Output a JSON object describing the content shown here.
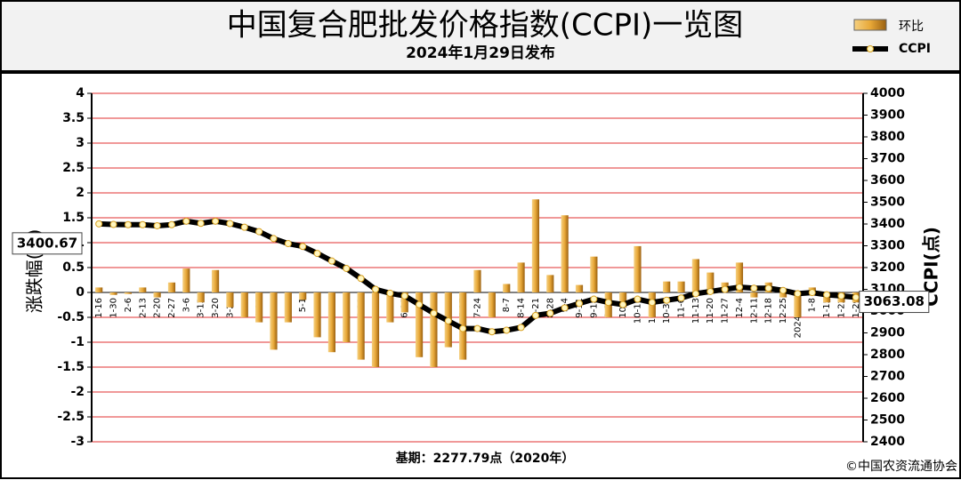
{
  "chart_data": {
    "type": "bar-line",
    "title": "中国复合肥批发价格指数(CCPI)一览图",
    "subtitle": "2024年1月29日发布",
    "categories": [
      "1-16",
      "1-30",
      "2-6",
      "2-13",
      "2-20",
      "2-27",
      "3-6",
      "3-13",
      "3-20",
      "3-27",
      "4-3",
      "4-10",
      "4-17",
      "4-24",
      "5-1",
      "5-8",
      "5-16",
      "5-22",
      "5-29",
      "6-5",
      "6-12",
      "6-19",
      "6-26",
      "7-3",
      "7-10",
      "7-17",
      "7-24",
      "7-31",
      "8-7",
      "8-14",
      "8-21",
      "8-28",
      "9-4",
      "9-11",
      "9-18",
      "9-25",
      "10-9",
      "10-16",
      "10-23",
      "10-30",
      "11-6",
      "11-13",
      "11-20",
      "11-27",
      "12-4",
      "12-11",
      "12-18",
      "12-25",
      "2024-1-1",
      "1-8",
      "1-15",
      "1-22",
      "1-29"
    ],
    "series": [
      {
        "name": "环比",
        "type": "bar",
        "color": "#e8a838",
        "values": [
          0.1,
          -0.05,
          -0.03,
          0.1,
          -0.1,
          0.2,
          0.48,
          -0.2,
          0.45,
          -0.3,
          -0.5,
          -0.6,
          -1.15,
          -0.6,
          -0.15,
          -0.9,
          -1.2,
          -1,
          -1.35,
          -1.5,
          -0.6,
          -0.4,
          -1.3,
          -1.5,
          -1.1,
          -1.35,
          0.45,
          -0.5,
          0.17,
          0.6,
          1.87,
          0.35,
          1.55,
          0.15,
          0.72,
          -0.5,
          -0.3,
          0.93,
          -0.5,
          0.22,
          0.22,
          0.67,
          0.4,
          0.2,
          0.6,
          -0.1,
          0.2,
          -0.1,
          -0.5,
          0.1,
          -0.2,
          -0.2,
          -0.2
        ]
      },
      {
        "name": "CCPI",
        "type": "line",
        "axis": "y2",
        "color": "#000000",
        "values": [
          3400.67,
          3398,
          3397,
          3397,
          3392,
          3397,
          3413,
          3403,
          3413,
          3402,
          3385,
          3365,
          3333,
          3310,
          3297,
          3265,
          3230,
          3196,
          3150,
          3100,
          3082,
          3070,
          3030,
          2990,
          2955,
          2920,
          2920,
          2905,
          2912,
          2925,
          2980,
          2990,
          3015,
          3035,
          3055,
          3040,
          3030,
          3055,
          3040,
          3050,
          3060,
          3080,
          3090,
          3100,
          3110,
          3105,
          3105,
          3095,
          3080,
          3085,
          3075,
          3070,
          3063.08
        ]
      }
    ],
    "ylabel": "涨跌幅(%)",
    "y2label": "CCPI(点)",
    "ylim": [
      -3,
      4
    ],
    "yticks": [
      -3,
      -2.5,
      -2,
      -1.5,
      -1,
      -0.5,
      0,
      0.5,
      1,
      1.5,
      2,
      2.5,
      3,
      3.5,
      4
    ],
    "y2lim": [
      2400,
      4000
    ],
    "y2ticks": [
      2400,
      2500,
      2600,
      2700,
      2800,
      2900,
      3000,
      3100,
      3200,
      3300,
      3400,
      3500,
      3600,
      3700,
      3800,
      3900,
      4000
    ],
    "grid": true,
    "legend": "top-right",
    "footnote": "基期：2277.79点（2020年）",
    "source": "©中国农资流通协会"
  }
}
